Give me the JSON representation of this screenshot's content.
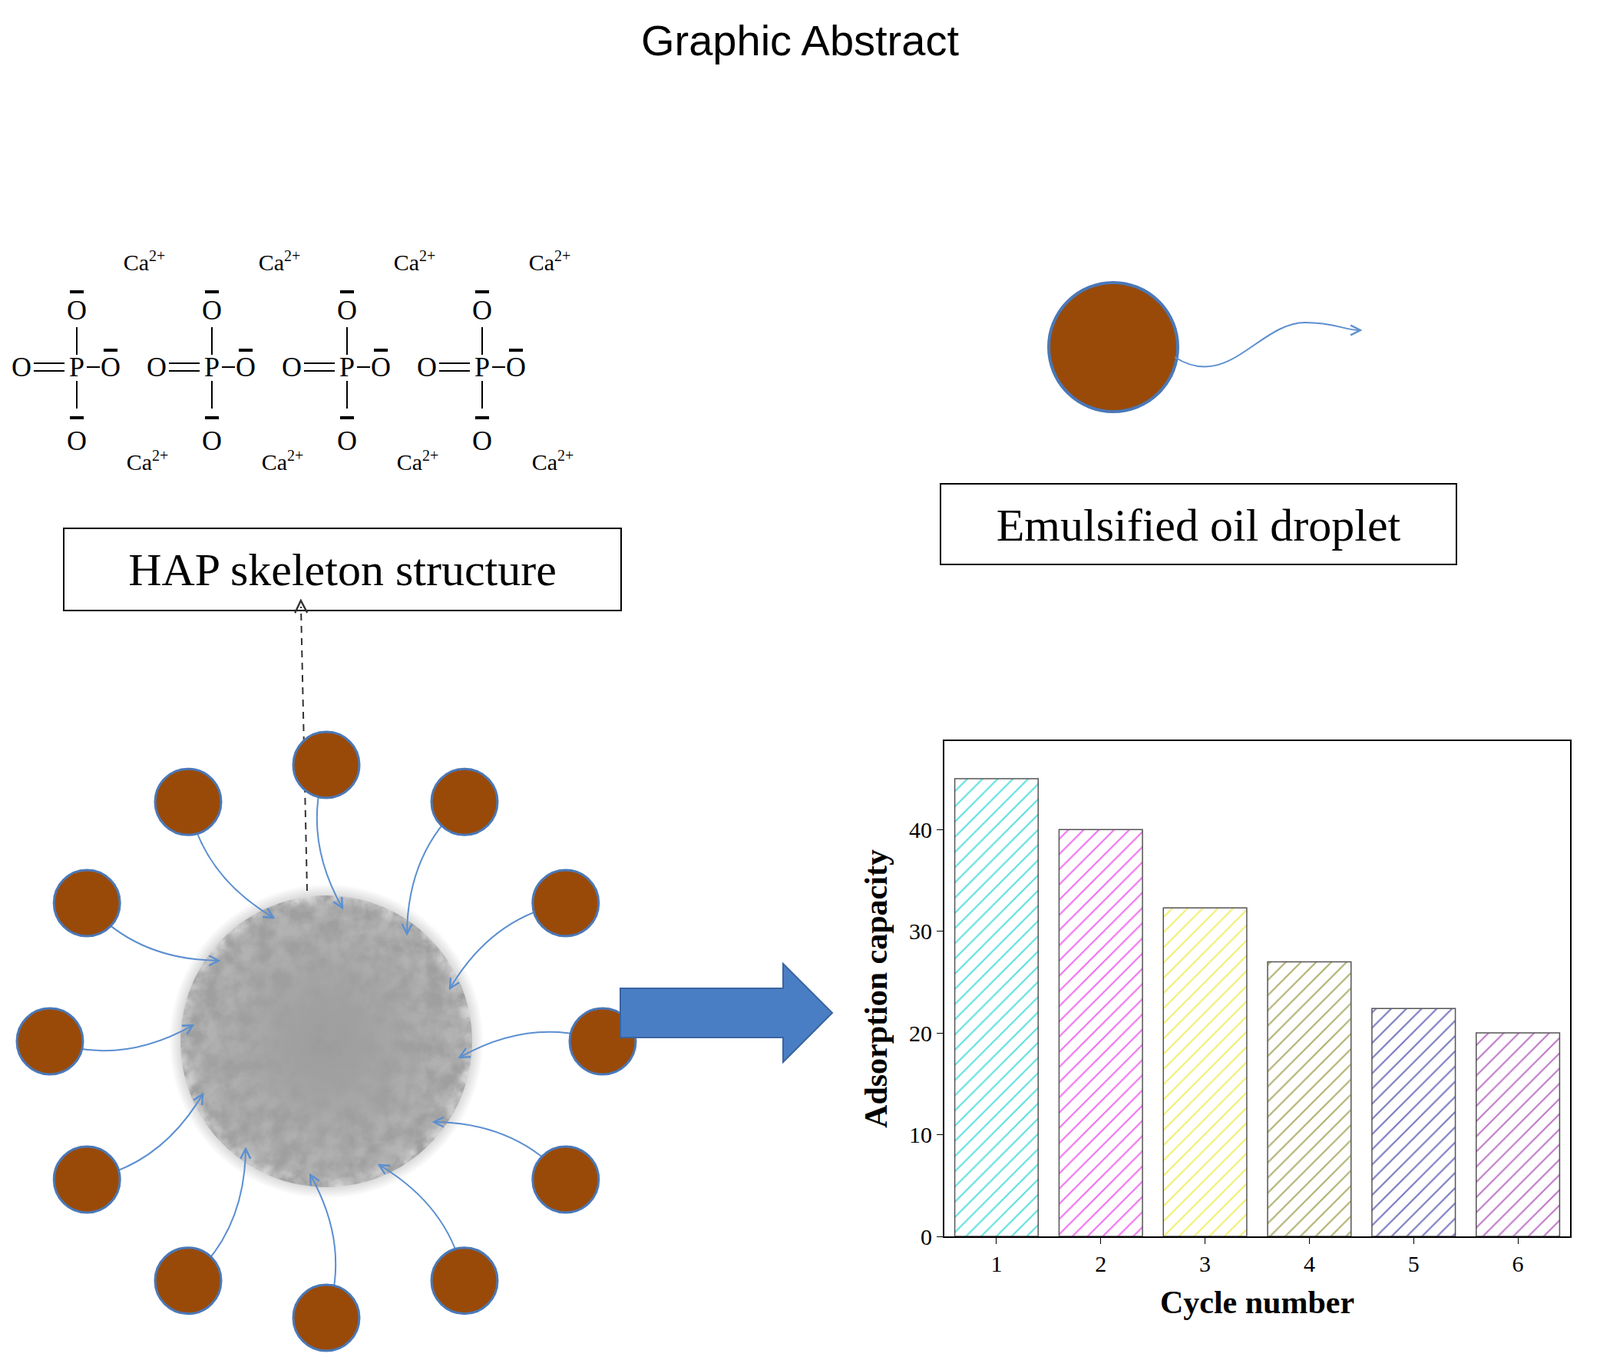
{
  "title": "Graphic Abstract",
  "hap": {
    "label": "HAP skeleton structure",
    "phosphate_count": 4,
    "phosphorus": "P",
    "oxygen": "O",
    "cation": "Ca",
    "cation_charge": "2+"
  },
  "droplet": {
    "label": "Emulsified oil droplet"
  },
  "adsorbent": {
    "droplet_count": 12
  },
  "chart_data": {
    "type": "bar",
    "categories": [
      "1",
      "2",
      "3",
      "4",
      "5",
      "6"
    ],
    "values": [
      45,
      40,
      32.3,
      27,
      22.4,
      20
    ],
    "colors": [
      "#5ee0e0",
      "#f070f0",
      "#f0f070",
      "#b0b070",
      "#7878c0",
      "#c078c8"
    ],
    "x_label": "Cycle number",
    "y_label": "Adsorption capacity",
    "ylim": [
      0,
      48.7
    ],
    "yticks": [
      0,
      10,
      20,
      30,
      40
    ],
    "grid": false
  }
}
